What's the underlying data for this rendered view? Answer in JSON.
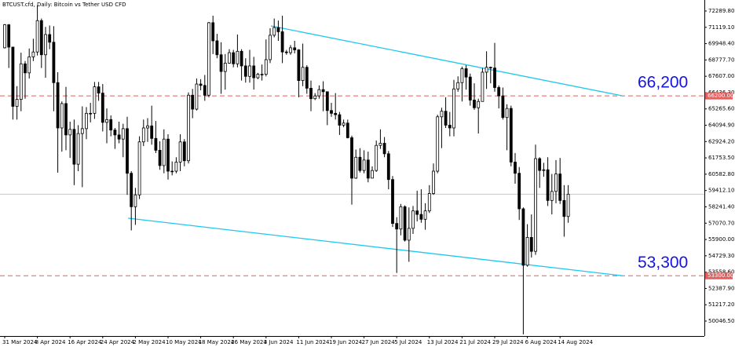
{
  "chart_data": {
    "type": "candlestick",
    "title": "BTCUST.cfd, Daily:  Bitcoin vs Tether USD CFD",
    "up_color": "#ffffff",
    "down_color": "#000000",
    "categories": [
      "31 Mar 2024",
      null,
      null,
      null,
      null,
      null,
      null,
      null,
      "8 Apr 2024",
      null,
      null,
      null,
      null,
      null,
      null,
      null,
      "16 Apr 2024",
      null,
      null,
      null,
      null,
      null,
      null,
      null,
      "24 Apr 2024",
      null,
      null,
      null,
      null,
      null,
      null,
      null,
      "2 May 2024",
      null,
      null,
      null,
      null,
      null,
      null,
      null,
      "10 May 2024",
      null,
      null,
      null,
      null,
      null,
      null,
      null,
      "18 May 2024",
      null,
      null,
      null,
      null,
      null,
      null,
      null,
      "26 May 2024",
      null,
      null,
      null,
      null,
      null,
      null,
      null,
      "3 Jun 2024",
      null,
      null,
      null,
      null,
      null,
      null,
      null,
      "11 Jun 2024",
      null,
      null,
      null,
      null,
      null,
      null,
      null,
      "19 Jun 2024",
      null,
      null,
      null,
      null,
      null,
      null,
      null,
      "27 Jun 2024",
      null,
      null,
      null,
      null,
      null,
      null,
      null,
      "5 Jul 2024",
      null,
      null,
      null,
      null,
      null,
      null,
      null,
      "13 Jul 2024",
      null,
      null,
      null,
      null,
      null,
      null,
      null,
      "21 Jul 2024",
      null,
      null,
      null,
      null,
      null,
      null,
      null,
      "29 Jul 2024",
      null,
      null,
      null,
      null,
      null,
      null,
      null,
      "6 Aug 2024",
      null,
      null,
      null,
      null,
      null,
      null,
      null,
      "14 Aug 2024",
      null,
      null
    ],
    "open": [
      69650,
      71300,
      69700,
      65450,
      65950,
      68500,
      67850,
      69000,
      69350,
      71600,
      69150,
      70600,
      70050,
      67150,
      63900,
      65650,
      63400,
      63800,
      61300,
      63500,
      63850,
      64950,
      64950,
      66850,
      66400,
      64300,
      64500,
      63750,
      63400,
      63100,
      63850,
      60650,
      58250,
      59100,
      62900,
      63900,
      64050,
      63150,
      62300,
      61200,
      63100,
      60800,
      60800,
      61450,
      62900,
      61550,
      66250,
      65250,
      67050,
      66950,
      66250,
      71450,
      70150,
      69150,
      67950,
      68550,
      69300,
      68500,
      69400,
      68350,
      67600,
      68350,
      67500,
      67750,
      67750,
      68800,
      70550,
      71100,
      70800,
      69350,
      69300,
      69650,
      69500,
      67300,
      68250,
      66750,
      66000,
      66200,
      66650,
      66500,
      65150,
      64950,
      64850,
      64100,
      64250,
      63200,
      60300,
      61800,
      60850,
      61600,
      60300,
      60850,
      62650,
      62800,
      62050,
      60200,
      57050,
      56650,
      58250,
      55850,
      56700,
      57950,
      57700,
      57350,
      57950,
      59200,
      60800,
      64700,
      65100,
      64100,
      63900,
      66700,
      67150,
      68150,
      67550,
      65900,
      65350,
      65800,
      67900,
      68250,
      68200,
      66800,
      66200,
      64650,
      65300,
      61450,
      60650,
      58100,
      54050,
      56050,
      55050,
      61700,
      60850,
      60900,
      58700,
      59350,
      60600,
      58700,
      57550
    ],
    "high": [
      71350,
      71350,
      69700,
      66900,
      69300,
      68700,
      69600,
      70300,
      72700,
      71750,
      71150,
      71250,
      71200,
      67900,
      65800,
      66850,
      64350,
      64500,
      64100,
      65450,
      65400,
      65700,
      67200,
      67200,
      67050,
      65300,
      64800,
      63900,
      64350,
      64200,
      64700,
      60800,
      59600,
      63300,
      64500,
      64600,
      65500,
      64400,
      62950,
      63800,
      63450,
      61500,
      61800,
      63450,
      63100,
      66450,
      66700,
      67450,
      67400,
      67700,
      71500,
      71950,
      70650,
      70050,
      69200,
      69550,
      69500,
      70600,
      69550,
      68900,
      69500,
      69000,
      67850,
      68450,
      70250,
      71050,
      71750,
      71600,
      71950,
      69500,
      69850,
      70150,
      69550,
      69950,
      68400,
      67300,
      66400,
      66950,
      67250,
      66500,
      65700,
      66400,
      65050,
      64500,
      64500,
      63350,
      62350,
      62450,
      62300,
      62200,
      61150,
      63000,
      63800,
      63250,
      62250,
      60450,
      57500,
      58450,
      58350,
      58200,
      58300,
      59400,
      59500,
      58500,
      59800,
      61350,
      64850,
      65350,
      66100,
      65050,
      67350,
      67600,
      68300,
      68400,
      67800,
      67100,
      66000,
      68200,
      69400,
      68300,
      70000,
      66950,
      66800,
      65600,
      65500,
      62100,
      61100,
      58200,
      57000,
      57700,
      62700,
      61800,
      61400,
      61800,
      60600,
      61600,
      61750,
      59800,
      59800
    ],
    "low": [
      69600,
      68200,
      64500,
      64500,
      65100,
      66000,
      67450,
      68700,
      69100,
      68200,
      67500,
      69550,
      65100,
      60700,
      62200,
      62300,
      61750,
      59800,
      60800,
      59650,
      63100,
      64300,
      64550,
      65850,
      63650,
      62800,
      63300,
      62400,
      62800,
      61800,
      59100,
      56550,
      56950,
      58800,
      62600,
      62900,
      62700,
      62100,
      60900,
      60650,
      60200,
      60500,
      60650,
      60800,
      61150,
      61350,
      64600,
      65150,
      66600,
      65850,
      66100,
      69200,
      68900,
      66350,
      66650,
      68500,
      68250,
      68250,
      67300,
      67150,
      67150,
      66650,
      67400,
      67300,
      67600,
      68550,
      70400,
      70150,
      68550,
      69150,
      69150,
      69250,
      66100,
      66900,
      66350,
      65100,
      65900,
      66000,
      65100,
      64100,
      64700,
      64500,
      63400,
      63950,
      63150,
      58400,
      60250,
      60700,
      60650,
      60000,
      60300,
      60750,
      62400,
      61800,
      59500,
      56800,
      53500,
      56200,
      55750,
      54300,
      56300,
      57200,
      57100,
      56600,
      57800,
      59100,
      60650,
      62450,
      63900,
      63300,
      63300,
      66500,
      65800,
      66650,
      65500,
      65200,
      63500,
      65800,
      66700,
      67100,
      66500,
      65300,
      64500,
      62300,
      61150,
      59900,
      57300,
      49100,
      53950,
      54600,
      54800,
      59600,
      60400,
      58300,
      57700,
      58500,
      58450,
      56100,
      57100
    ],
    "close": [
      71300,
      69700,
      65450,
      65950,
      68500,
      67850,
      69000,
      69350,
      71600,
      69150,
      70600,
      70050,
      67150,
      63900,
      65650,
      63400,
      63800,
      61300,
      63500,
      63850,
      64950,
      64950,
      66850,
      66400,
      64300,
      64500,
      63750,
      63400,
      63100,
      63850,
      60650,
      58250,
      59100,
      62900,
      63900,
      64050,
      63150,
      62300,
      61200,
      63100,
      60800,
      60800,
      61450,
      62900,
      61550,
      66250,
      65250,
      67050,
      66950,
      66250,
      71450,
      70150,
      69150,
      67950,
      68550,
      69300,
      68500,
      69400,
      68350,
      67600,
      68350,
      67500,
      67750,
      67750,
      68800,
      70550,
      71100,
      70800,
      69350,
      69300,
      69650,
      69500,
      67300,
      68250,
      66750,
      66000,
      66200,
      66650,
      66500,
      65150,
      64950,
      64850,
      64100,
      64250,
      63200,
      60300,
      61800,
      60850,
      61600,
      60300,
      60850,
      62650,
      62800,
      62050,
      60200,
      57050,
      56650,
      58250,
      55850,
      56700,
      57950,
      57700,
      57350,
      57950,
      59200,
      60800,
      64700,
      65100,
      64100,
      63900,
      66700,
      67150,
      68150,
      67550,
      65900,
      65350,
      65800,
      67900,
      68250,
      68200,
      66800,
      66200,
      64650,
      65300,
      61450,
      60650,
      58100,
      54050,
      56050,
      55050,
      61700,
      60850,
      60900,
      58700,
      59350,
      60600,
      58700,
      57550,
      59150
    ],
    "ylim": [
      48977,
      73078
    ],
    "yticks": [
      {
        "value": 72289.8,
        "label": "72289.80"
      },
      {
        "value": 71119.1,
        "label": "71119.10"
      },
      {
        "value": 69948.4,
        "label": "69948.40"
      },
      {
        "value": 68777.7,
        "label": "68777.70"
      },
      {
        "value": 67607,
        "label": "67607.00"
      },
      {
        "value": 66436.3,
        "label": "66436.30"
      },
      {
        "value": 65265.6,
        "label": "65265.60"
      },
      {
        "value": 64094.9,
        "label": "64094.90"
      },
      {
        "value": 62924.2,
        "label": "62924.20"
      },
      {
        "value": 61753.5,
        "label": "61753.50"
      },
      {
        "value": 60582.8,
        "label": "60582.80"
      },
      {
        "value": 59412.1,
        "label": "59412.10"
      },
      {
        "value": 58241.4,
        "label": "58241.40"
      },
      {
        "value": 57070.7,
        "label": "57070.70"
      },
      {
        "value": 55900,
        "label": "55900.00"
      },
      {
        "value": 54729.3,
        "label": "54729.30"
      },
      {
        "value": 53558.6,
        "label": "53558.60"
      },
      {
        "value": 52387.9,
        "label": "52387.90"
      },
      {
        "value": 51217.2,
        "label": "51217.20"
      },
      {
        "value": 50046.5,
        "label": "50046.50"
      }
    ],
    "levels": [
      {
        "value": 66200,
        "label": "66,200",
        "axis_label": "66200.00",
        "color": "#e06060"
      },
      {
        "value": 53300,
        "label": "53,300",
        "axis_label": "53300.00",
        "color": "#e06060"
      }
    ],
    "trendlines": [
      {
        "color": "#1ec8f0",
        "values": [
          71220,
          66200
        ]
      },
      {
        "color": "#1ec8f0",
        "values": [
          57430,
          53300
        ]
      }
    ]
  }
}
